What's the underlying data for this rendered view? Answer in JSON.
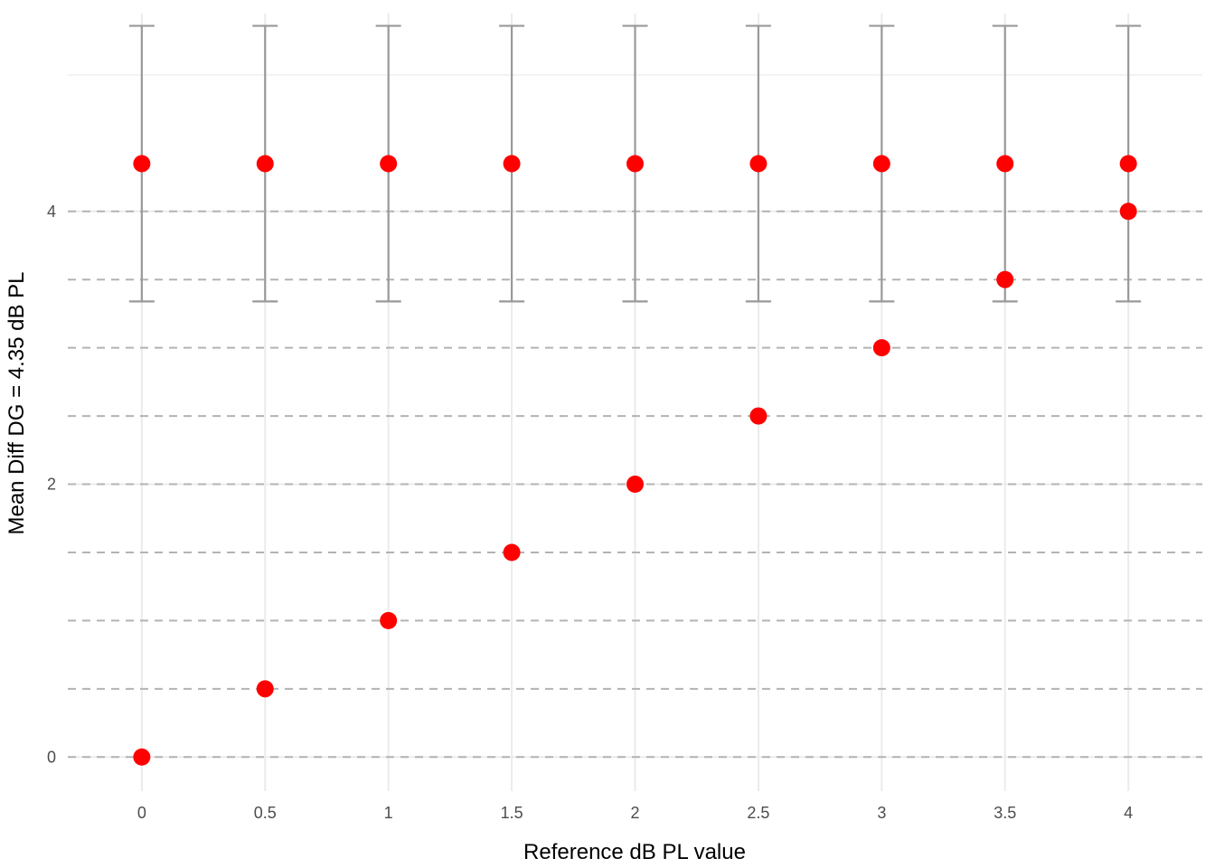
{
  "chart_data": {
    "type": "scatter",
    "title": "",
    "xlabel": "Reference dB PL value",
    "ylabel": "Mean Diff DG = 4.35 dB PL",
    "xlim": [
      -0.3,
      4.3
    ],
    "ylim": [
      -0.25,
      5.45
    ],
    "x_ticks": [
      0,
      0.5,
      1,
      1.5,
      2,
      2.5,
      3,
      3.5,
      4
    ],
    "x_tick_labels": [
      "0",
      "0.5",
      "1",
      "1.5",
      "2",
      "2.5",
      "3",
      "3.5",
      "4"
    ],
    "y_ticks": [
      0,
      2,
      4
    ],
    "y_tick_labels": [
      "0",
      "2",
      "4"
    ],
    "y_minor_gridlines": [
      5
    ],
    "dashed_reference_lines": [
      0,
      0.5,
      1,
      1.5,
      2,
      2.5,
      3,
      3.5,
      4
    ],
    "grid": true,
    "legend": "none",
    "series": [
      {
        "kind": "points",
        "color": "#ff0000",
        "x": [
          0,
          0.5,
          1,
          1.5,
          2,
          2.5,
          3,
          3.5,
          4
        ],
        "y": [
          0,
          0.5,
          1,
          1.5,
          2,
          2.5,
          3,
          3.5,
          4
        ]
      },
      {
        "kind": "points_with_errorbars",
        "color": "#ff0000",
        "errorbar_color": "#999999",
        "x": [
          0,
          0.5,
          1,
          1.5,
          2,
          2.5,
          3,
          3.5,
          4
        ],
        "y": [
          4.35,
          4.35,
          4.35,
          4.35,
          4.35,
          4.35,
          4.35,
          4.35,
          4.35
        ],
        "ymin": [
          3.34,
          3.34,
          3.34,
          3.34,
          3.34,
          3.34,
          3.34,
          3.34,
          3.34
        ],
        "ymax": [
          5.36,
          5.36,
          5.36,
          5.36,
          5.36,
          5.36,
          5.36,
          5.36,
          5.36
        ]
      }
    ],
    "colors": {
      "points": "#ff0000",
      "errorbars": "#999999",
      "dashed_lines": "#b3b3b3",
      "grid": "#ebebeb"
    }
  }
}
